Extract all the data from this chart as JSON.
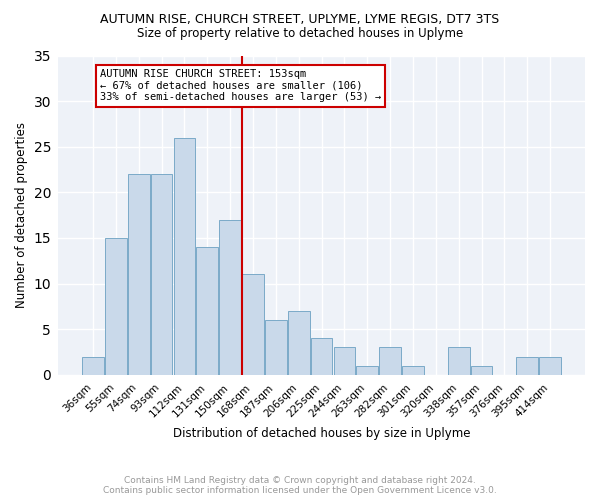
{
  "title": "AUTUMN RISE, CHURCH STREET, UPLYME, LYME REGIS, DT7 3TS",
  "subtitle": "Size of property relative to detached houses in Uplyme",
  "xlabel": "Distribution of detached houses by size in Uplyme",
  "ylabel": "Number of detached properties",
  "categories": [
    "36sqm",
    "55sqm",
    "74sqm",
    "93sqm",
    "112sqm",
    "131sqm",
    "150sqm",
    "168sqm",
    "187sqm",
    "206sqm",
    "225sqm",
    "244sqm",
    "263sqm",
    "282sqm",
    "301sqm",
    "320sqm",
    "338sqm",
    "357sqm",
    "376sqm",
    "395sqm",
    "414sqm"
  ],
  "values": [
    2,
    15,
    22,
    22,
    26,
    14,
    17,
    11,
    6,
    7,
    4,
    3,
    1,
    3,
    1,
    0,
    3,
    1,
    0,
    2,
    2
  ],
  "bar_color": "#c9d9ea",
  "bar_edge_color": "#7aaac8",
  "vline_x_index": 6.5,
  "vline_color": "#cc0000",
  "annotation_title": "AUTUMN RISE CHURCH STREET: 153sqm",
  "annotation_line1": "← 67% of detached houses are smaller (106)",
  "annotation_line2": "33% of semi-detached houses are larger (53) →",
  "annotation_box_color": "#ffffff",
  "annotation_box_edge": "#cc0000",
  "ylim": [
    0,
    35
  ],
  "yticks": [
    0,
    5,
    10,
    15,
    20,
    25,
    30,
    35
  ],
  "footer_line1": "Contains HM Land Registry data © Crown copyright and database right 2024.",
  "footer_line2": "Contains public sector information licensed under the Open Government Licence v3.0.",
  "plot_bg_color": "#eef2f8",
  "fig_bg_color": "#ffffff",
  "grid_color": "#ffffff",
  "title_fontsize": 9,
  "subtitle_fontsize": 8.5,
  "ylabel_fontsize": 8.5,
  "xlabel_fontsize": 8.5,
  "tick_fontsize": 7.5,
  "annotation_fontsize": 7.5,
  "footer_fontsize": 6.5,
  "footer_color": "#999999"
}
